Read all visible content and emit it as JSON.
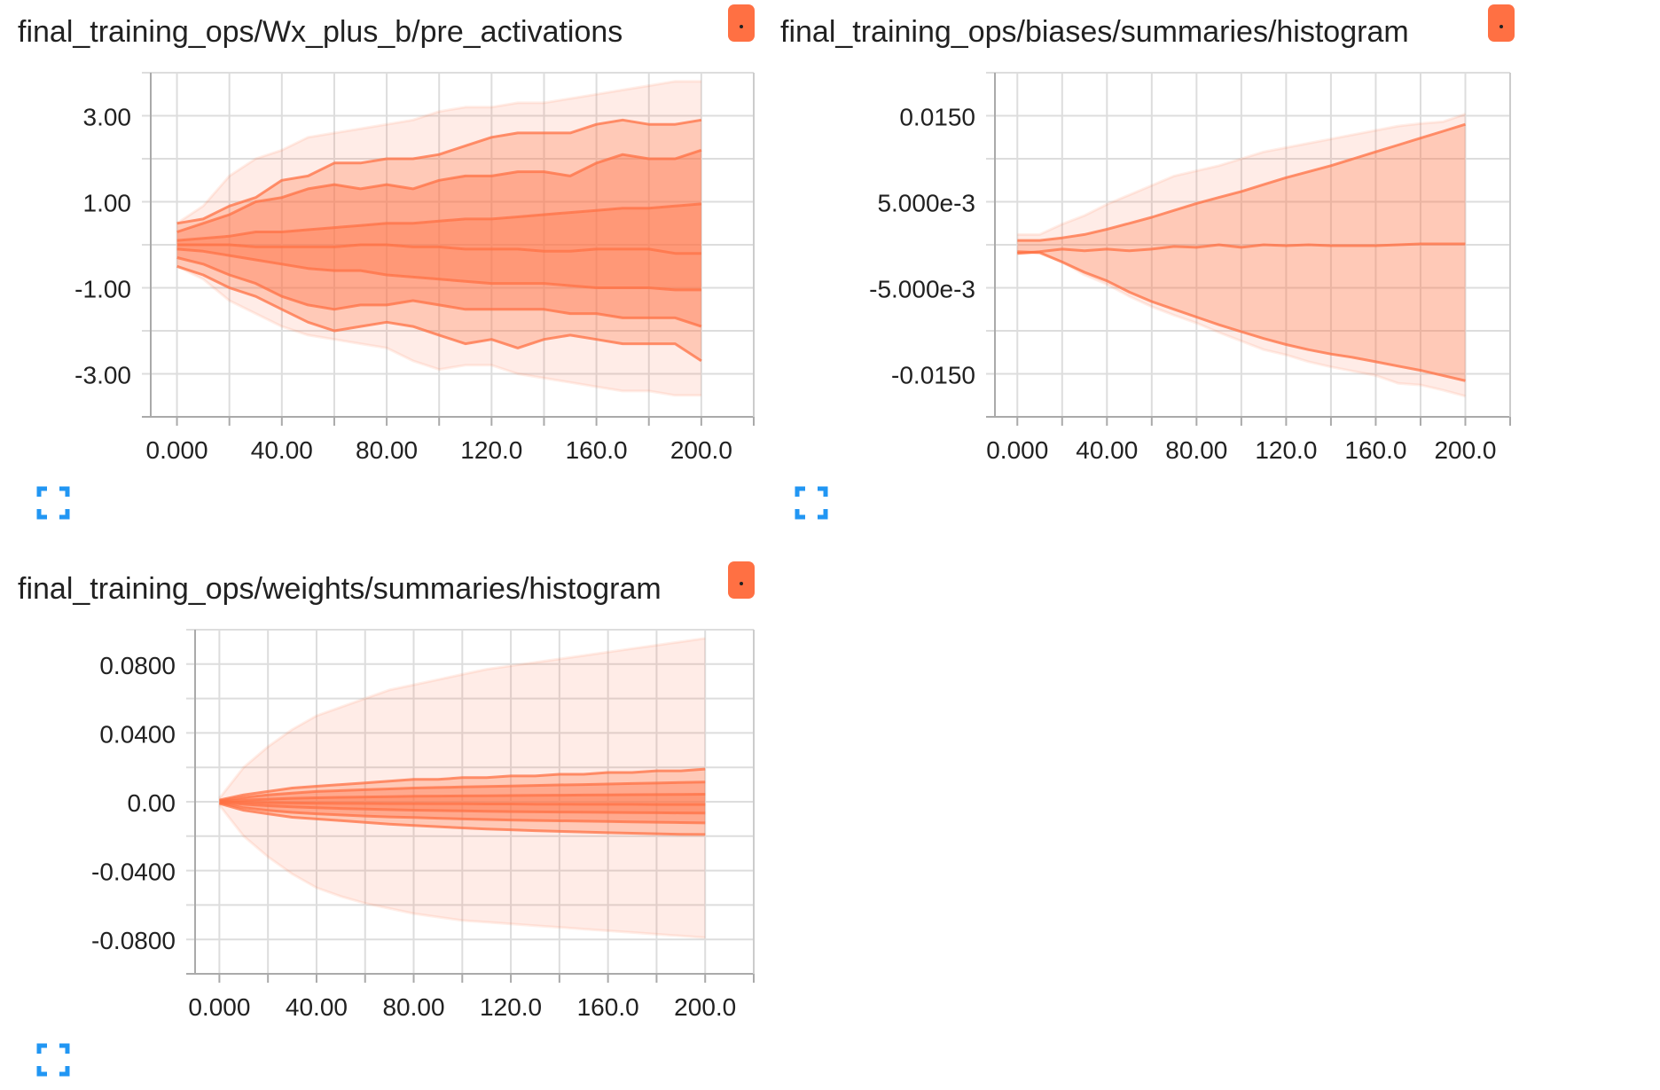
{
  "accent_color": "#ff7043",
  "icon_color": "#2196f3",
  "expand_icon_name": "expand-fullscreen-icon",
  "chart_data": [
    {
      "type": "area",
      "title": "final_training_ops/Wx_plus_b/pre_activations",
      "xlabel": "",
      "ylabel": "",
      "xlim": [
        -10,
        220
      ],
      "ylim": [
        -4.0,
        4.0
      ],
      "xticks": [
        0,
        40,
        80,
        120,
        160,
        200
      ],
      "xtick_labels": [
        "0.000",
        "40.00",
        "80.00",
        "120.0",
        "160.0",
        "200.0"
      ],
      "yticks": [
        3,
        1,
        -1,
        -3
      ],
      "ytick_labels": [
        "3.00",
        "1.00",
        "-1.00",
        "-3.00"
      ],
      "grid": true,
      "x": [
        0,
        10,
        20,
        30,
        40,
        50,
        60,
        70,
        80,
        90,
        100,
        110,
        120,
        130,
        140,
        150,
        160,
        170,
        180,
        190,
        200
      ],
      "series": [
        {
          "values": [
            0.5,
            0.9,
            1.6,
            2.0,
            2.2,
            2.5,
            2.6,
            2.7,
            2.8,
            2.9,
            3.1,
            3.2,
            3.2,
            3.3,
            3.3,
            3.4,
            3.5,
            3.6,
            3.7,
            3.8,
            3.8
          ]
        },
        {
          "values": [
            0.5,
            0.6,
            0.9,
            1.1,
            1.5,
            1.6,
            1.9,
            1.9,
            2.0,
            2.0,
            2.1,
            2.3,
            2.5,
            2.6,
            2.6,
            2.6,
            2.8,
            2.9,
            2.8,
            2.8,
            2.9
          ]
        },
        {
          "values": [
            0.3,
            0.5,
            0.7,
            1.0,
            1.1,
            1.3,
            1.4,
            1.3,
            1.4,
            1.3,
            1.5,
            1.6,
            1.6,
            1.7,
            1.7,
            1.6,
            1.9,
            2.1,
            2.0,
            2.0,
            2.2
          ]
        },
        {
          "values": [
            0.1,
            0.15,
            0.2,
            0.3,
            0.3,
            0.35,
            0.4,
            0.45,
            0.5,
            0.5,
            0.55,
            0.6,
            0.6,
            0.65,
            0.7,
            0.75,
            0.8,
            0.85,
            0.85,
            0.9,
            0.95
          ]
        },
        {
          "values": [
            0.0,
            0.0,
            0.0,
            -0.05,
            -0.05,
            -0.05,
            -0.05,
            0.0,
            0.0,
            -0.05,
            -0.05,
            -0.1,
            -0.1,
            -0.1,
            -0.15,
            -0.15,
            -0.1,
            -0.1,
            -0.1,
            -0.2,
            -0.2
          ]
        },
        {
          "values": [
            -0.1,
            -0.15,
            -0.25,
            -0.35,
            -0.45,
            -0.55,
            -0.6,
            -0.6,
            -0.7,
            -0.75,
            -0.8,
            -0.85,
            -0.9,
            -0.9,
            -0.9,
            -0.95,
            -1.0,
            -1.0,
            -1.0,
            -1.05,
            -1.05
          ]
        },
        {
          "values": [
            -0.3,
            -0.45,
            -0.7,
            -0.9,
            -1.2,
            -1.4,
            -1.5,
            -1.4,
            -1.4,
            -1.3,
            -1.4,
            -1.5,
            -1.5,
            -1.5,
            -1.5,
            -1.6,
            -1.6,
            -1.7,
            -1.7,
            -1.7,
            -1.9
          ]
        },
        {
          "values": [
            -0.5,
            -0.7,
            -1.0,
            -1.2,
            -1.5,
            -1.8,
            -2.0,
            -1.9,
            -1.8,
            -1.9,
            -2.1,
            -2.3,
            -2.2,
            -2.4,
            -2.2,
            -2.1,
            -2.2,
            -2.3,
            -2.3,
            -2.3,
            -2.7
          ]
        },
        {
          "values": [
            -0.5,
            -0.8,
            -1.3,
            -1.6,
            -1.9,
            -2.1,
            -2.2,
            -2.3,
            -2.4,
            -2.7,
            -2.9,
            -2.8,
            -2.8,
            -3.0,
            -3.1,
            -3.2,
            -3.3,
            -3.4,
            -3.4,
            -3.5,
            -3.5
          ]
        }
      ]
    },
    {
      "type": "area",
      "title": "final_training_ops/biases/summaries/histogram",
      "xlabel": "",
      "ylabel": "",
      "xlim": [
        -10,
        220
      ],
      "ylim": [
        -0.02,
        0.02
      ],
      "xticks": [
        0,
        40,
        80,
        120,
        160,
        200
      ],
      "xtick_labels": [
        "0.000",
        "40.00",
        "80.00",
        "120.0",
        "160.0",
        "200.0"
      ],
      "yticks": [
        0.015,
        0.005,
        -0.005,
        -0.015
      ],
      "ytick_labels": [
        "0.0150",
        "5.000e-3",
        "-5.000e-3",
        "-0.0150"
      ],
      "grid": true,
      "x": [
        0,
        10,
        20,
        30,
        40,
        50,
        60,
        70,
        80,
        90,
        100,
        110,
        120,
        130,
        140,
        150,
        160,
        170,
        180,
        190,
        200
      ],
      "series": [
        {
          "values": [
            0.0012,
            0.0012,
            0.0024,
            0.0034,
            0.0047,
            0.0058,
            0.0069,
            0.008,
            0.0086,
            0.0092,
            0.01,
            0.0108,
            0.0113,
            0.0118,
            0.0123,
            0.0128,
            0.0133,
            0.0138,
            0.0141,
            0.0143,
            0.0152
          ]
        },
        {
          "values": [
            0.0005,
            0.0005,
            0.0008,
            0.0012,
            0.0018,
            0.0025,
            0.0032,
            0.004,
            0.0048,
            0.0055,
            0.0062,
            0.007,
            0.0078,
            0.0085,
            0.0092,
            0.01,
            0.0108,
            0.0116,
            0.0124,
            0.0132,
            0.014
          ]
        },
        {
          "values": [
            -0.001,
            -0.0008,
            -0.0005,
            -0.0007,
            -0.0005,
            -0.0007,
            -0.0005,
            -0.0002,
            -0.0003,
            0.0,
            -0.0003,
            0.0,
            -0.0001,
            0.0,
            -0.0001,
            -0.0001,
            -0.0001,
            0.0,
            0.0001,
            0.0001,
            0.0001
          ]
        },
        {
          "values": [
            -0.0008,
            -0.0009,
            -0.002,
            -0.0032,
            -0.0042,
            -0.0055,
            -0.0066,
            -0.0075,
            -0.0084,
            -0.0093,
            -0.0101,
            -0.0109,
            -0.0116,
            -0.0122,
            -0.0127,
            -0.0131,
            -0.0136,
            -0.0141,
            -0.0146,
            -0.0152,
            -0.0158
          ]
        },
        {
          "values": [
            -0.001,
            -0.001,
            -0.002,
            -0.0035,
            -0.0046,
            -0.006,
            -0.0072,
            -0.0082,
            -0.0091,
            -0.0102,
            -0.0112,
            -0.0122,
            -0.0128,
            -0.0136,
            -0.0142,
            -0.0147,
            -0.0152,
            -0.0161,
            -0.0163,
            -0.0169,
            -0.0176
          ]
        }
      ]
    },
    {
      "type": "area",
      "title": "final_training_ops/weights/summaries/histogram",
      "xlabel": "",
      "ylabel": "",
      "xlim": [
        -10,
        220
      ],
      "ylim": [
        -0.1,
        0.1
      ],
      "xticks": [
        0,
        40,
        80,
        120,
        160,
        200
      ],
      "xtick_labels": [
        "0.000",
        "40.00",
        "80.00",
        "120.0",
        "160.0",
        "200.0"
      ],
      "yticks": [
        0.08,
        0.04,
        0,
        -0.04,
        -0.08
      ],
      "ytick_labels": [
        "0.0800",
        "0.0400",
        "0.00",
        "-0.0400",
        "-0.0800"
      ],
      "grid": true,
      "x": [
        0,
        10,
        20,
        30,
        40,
        50,
        60,
        70,
        80,
        90,
        100,
        110,
        120,
        130,
        140,
        150,
        160,
        170,
        180,
        190,
        200
      ],
      "series": [
        {
          "values": [
            0.002,
            0.02,
            0.032,
            0.042,
            0.05,
            0.055,
            0.06,
            0.065,
            0.068,
            0.071,
            0.074,
            0.077,
            0.079,
            0.081,
            0.083,
            0.085,
            0.087,
            0.089,
            0.091,
            0.093,
            0.095
          ]
        },
        {
          "values": [
            0.001,
            0.004,
            0.006,
            0.008,
            0.009,
            0.01,
            0.011,
            0.012,
            0.013,
            0.013,
            0.014,
            0.014,
            0.015,
            0.015,
            0.016,
            0.016,
            0.017,
            0.017,
            0.018,
            0.018,
            0.019
          ]
        },
        {
          "values": [
            0.0006,
            0.0025,
            0.004,
            0.005,
            0.006,
            0.0065,
            0.007,
            0.0075,
            0.008,
            0.0083,
            0.0086,
            0.0089,
            0.0092,
            0.0095,
            0.0098,
            0.01,
            0.0103,
            0.0106,
            0.0109,
            0.0112,
            0.0115
          ]
        },
        {
          "values": [
            0.0003,
            0.001,
            0.0015,
            0.002,
            0.0023,
            0.0026,
            0.0028,
            0.003,
            0.0032,
            0.0033,
            0.0034,
            0.0035,
            0.0036,
            0.0037,
            0.0038,
            0.0039,
            0.004,
            0.0041,
            0.0042,
            0.0043,
            0.0044
          ]
        },
        {
          "values": [
            0.0,
            -0.0003,
            -0.0005,
            -0.0007,
            -0.0008,
            -0.0009,
            -0.001,
            -0.0011,
            -0.0011,
            -0.0012,
            -0.0012,
            -0.0013,
            -0.0013,
            -0.0014,
            -0.0014,
            -0.0015,
            -0.0015,
            -0.0015,
            -0.0016,
            -0.0016,
            -0.0016
          ]
        },
        {
          "values": [
            -0.0003,
            -0.0015,
            -0.0023,
            -0.003,
            -0.0035,
            -0.0039,
            -0.0043,
            -0.0046,
            -0.0049,
            -0.0051,
            -0.0053,
            -0.0055,
            -0.0057,
            -0.0059,
            -0.006,
            -0.0061,
            -0.0062,
            -0.0063,
            -0.0064,
            -0.0065,
            -0.0066
          ]
        },
        {
          "values": [
            -0.0006,
            -0.0035,
            -0.005,
            -0.0062,
            -0.007,
            -0.0077,
            -0.0083,
            -0.0088,
            -0.0092,
            -0.0096,
            -0.01,
            -0.0103,
            -0.0106,
            -0.0109,
            -0.0111,
            -0.0113,
            -0.0115,
            -0.0117,
            -0.0119,
            -0.0121,
            -0.0123
          ]
        },
        {
          "values": [
            -0.001,
            -0.005,
            -0.007,
            -0.009,
            -0.01,
            -0.011,
            -0.012,
            -0.013,
            -0.0138,
            -0.0145,
            -0.0152,
            -0.0158,
            -0.0163,
            -0.0168,
            -0.0172,
            -0.0176,
            -0.018,
            -0.0183,
            -0.0186,
            -0.0189,
            -0.019
          ]
        },
        {
          "values": [
            -0.002,
            -0.02,
            -0.032,
            -0.042,
            -0.05,
            -0.055,
            -0.059,
            -0.062,
            -0.065,
            -0.067,
            -0.069,
            -0.07,
            -0.071,
            -0.072,
            -0.073,
            -0.074,
            -0.075,
            -0.076,
            -0.077,
            -0.078,
            -0.079
          ]
        }
      ]
    }
  ]
}
